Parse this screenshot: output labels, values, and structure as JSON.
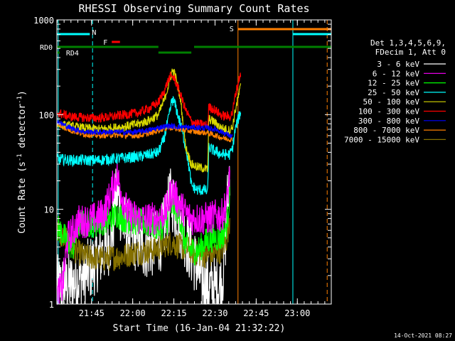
{
  "chart_data": {
    "type": "line",
    "title": "RHESSI Observing Summary Count Rates",
    "xlabel": "Start Time (16-Jan-04 21:32:22)",
    "ylabel": "Count Rate (s⁻¹ detector⁻¹)",
    "ylabel_parts": [
      "Count Rate (s",
      "-1",
      " detector",
      "-1",
      ")"
    ],
    "y_scale": "log",
    "ylim": [
      1,
      1000
    ],
    "xlim_minutes": [
      0,
      100
    ],
    "x_ticks": [
      {
        "t": 12.63,
        "label": "21:45"
      },
      {
        "t": 27.63,
        "label": "22:00"
      },
      {
        "t": 42.63,
        "label": "22:15"
      },
      {
        "t": 57.63,
        "label": "22:30"
      },
      {
        "t": 72.63,
        "label": "22:45"
      },
      {
        "t": 87.63,
        "label": "23:00"
      }
    ],
    "y_ticks": [
      {
        "v": 1,
        "label": "1"
      },
      {
        "v": 10,
        "label": "10"
      },
      {
        "v": 100,
        "label": "100"
      },
      {
        "v": 1000,
        "label": "1000"
      }
    ],
    "legend_header": [
      "Det 1,3,4,5,6,9,",
      "FDecim 1, Att 0"
    ],
    "series": [
      {
        "name": "3 - 6 keV",
        "color": "#ffffff",
        "noise": 0.35,
        "points": [
          [
            0,
            1.5
          ],
          [
            5,
            1.6
          ],
          [
            10,
            2
          ],
          [
            15,
            3
          ],
          [
            18,
            4
          ],
          [
            20,
            5
          ],
          [
            21,
            10
          ],
          [
            22,
            16
          ],
          [
            24,
            7
          ],
          [
            28,
            5
          ],
          [
            32,
            4
          ],
          [
            35,
            4.2
          ],
          [
            38,
            5
          ],
          [
            40,
            8
          ],
          [
            41,
            12
          ],
          [
            42,
            13
          ],
          [
            44,
            8
          ],
          [
            46,
            6
          ],
          [
            48,
            4
          ],
          [
            50,
            3
          ],
          [
            52,
            2
          ],
          [
            54,
            1.6
          ],
          [
            56,
            1.5
          ],
          [
            58,
            1.5
          ],
          [
            60,
            1.6
          ],
          [
            61,
            3
          ],
          [
            62,
            10
          ],
          [
            63,
            30
          ]
        ]
      },
      {
        "name": "6 - 12 keV",
        "color": "#ff00ff",
        "noise": 0.18,
        "points": [
          [
            0,
            1.3
          ],
          [
            2,
            1.5
          ],
          [
            4,
            5
          ],
          [
            6,
            6
          ],
          [
            8,
            7.5
          ],
          [
            10,
            7.5
          ],
          [
            14,
            8
          ],
          [
            17,
            9
          ],
          [
            19,
            13
          ],
          [
            21,
            20
          ],
          [
            22,
            23
          ],
          [
            24,
            13
          ],
          [
            26,
            9
          ],
          [
            30,
            8
          ],
          [
            35,
            8
          ],
          [
            38,
            8.5
          ],
          [
            40,
            10
          ],
          [
            41,
            13
          ],
          [
            42,
            16
          ],
          [
            43,
            14
          ],
          [
            45,
            11
          ],
          [
            47,
            9
          ],
          [
            49,
            8
          ],
          [
            52,
            8
          ],
          [
            55,
            8
          ],
          [
            58,
            8.5
          ],
          [
            60,
            8.5
          ],
          [
            62,
            12
          ],
          [
            63,
            25
          ]
        ]
      },
      {
        "name": "12 - 25 keV",
        "color": "#00ff00",
        "noise": 0.15,
        "points": [
          [
            0,
            6.5
          ],
          [
            2,
            5.5
          ],
          [
            4,
            4.5
          ],
          [
            6,
            4
          ],
          [
            8,
            7
          ],
          [
            10,
            7
          ],
          [
            14,
            7
          ],
          [
            17,
            7.5
          ],
          [
            20,
            8
          ],
          [
            22,
            9
          ],
          [
            24,
            8
          ],
          [
            28,
            7.5
          ],
          [
            33,
            7
          ],
          [
            37,
            6.5
          ],
          [
            40,
            7
          ],
          [
            41,
            10
          ],
          [
            43,
            11
          ],
          [
            45,
            8
          ],
          [
            46,
            5
          ],
          [
            48,
            3.8
          ],
          [
            51,
            3.6
          ],
          [
            54,
            4.5
          ],
          [
            57,
            5
          ],
          [
            60,
            5
          ],
          [
            62,
            7
          ],
          [
            63,
            15
          ]
        ]
      },
      {
        "name": "25 - 50 keV",
        "color": "#00ffff",
        "noise": 0.06,
        "points": [
          [
            0,
            34
          ],
          [
            5,
            33
          ],
          [
            10,
            33
          ],
          [
            15,
            33
          ],
          [
            20,
            34
          ],
          [
            25,
            35
          ],
          [
            30,
            36
          ],
          [
            34,
            38
          ],
          [
            37,
            40
          ],
          [
            39,
            55
          ],
          [
            41,
            100
          ],
          [
            42,
            145
          ],
          [
            43,
            130
          ],
          [
            45,
            80
          ],
          [
            47,
            45
          ],
          [
            48,
            30
          ],
          [
            49,
            18
          ],
          [
            51,
            16
          ],
          [
            54,
            16
          ],
          [
            55,
            15
          ],
          [
            55.3,
            45
          ],
          [
            57,
            42
          ],
          [
            60,
            38
          ],
          [
            63,
            38
          ],
          [
            64,
            44
          ],
          [
            65,
            70
          ],
          [
            67,
            110
          ]
        ]
      },
      {
        "name": "50 - 100 keV",
        "color": "#d7d700",
        "noise": 0.05,
        "points": [
          [
            0,
            80
          ],
          [
            5,
            75
          ],
          [
            10,
            72
          ],
          [
            15,
            70
          ],
          [
            20,
            72
          ],
          [
            25,
            75
          ],
          [
            30,
            80
          ],
          [
            34,
            88
          ],
          [
            37,
            100
          ],
          [
            39,
            140
          ],
          [
            41,
            220
          ],
          [
            42,
            290
          ],
          [
            43,
            270
          ],
          [
            45,
            150
          ],
          [
            46,
            80
          ],
          [
            47,
            45
          ],
          [
            49,
            30
          ],
          [
            51,
            28
          ],
          [
            54,
            27
          ],
          [
            55,
            26
          ],
          [
            55.3,
            90
          ],
          [
            57,
            85
          ],
          [
            60,
            72
          ],
          [
            63,
            68
          ],
          [
            64,
            74
          ],
          [
            65,
            110
          ],
          [
            67,
            200
          ]
        ]
      },
      {
        "name": "100 - 300 keV",
        "color": "#ff0000",
        "noise": 0.05,
        "points": [
          [
            0,
            105
          ],
          [
            5,
            95
          ],
          [
            10,
            93
          ],
          [
            15,
            92
          ],
          [
            20,
            95
          ],
          [
            25,
            100
          ],
          [
            30,
            105
          ],
          [
            34,
            118
          ],
          [
            37,
            135
          ],
          [
            39,
            175
          ],
          [
            41,
            245
          ],
          [
            42,
            255
          ],
          [
            43,
            235
          ],
          [
            45,
            165
          ],
          [
            47,
            110
          ],
          [
            49,
            85
          ],
          [
            51,
            80
          ],
          [
            54,
            78
          ],
          [
            55,
            77
          ],
          [
            55.3,
            120
          ],
          [
            57,
            115
          ],
          [
            60,
            98
          ],
          [
            63,
            95
          ],
          [
            64,
            105
          ],
          [
            65,
            160
          ],
          [
            67,
            280
          ]
        ]
      },
      {
        "name": "300 - 800 keV",
        "color": "#0000ff",
        "noise": 0.03,
        "points": [
          [
            0,
            85
          ],
          [
            5,
            72
          ],
          [
            10,
            66
          ],
          [
            15,
            65
          ],
          [
            20,
            66
          ],
          [
            25,
            65
          ],
          [
            30,
            66
          ],
          [
            35,
            70
          ],
          [
            38,
            74
          ],
          [
            41,
            76
          ],
          [
            45,
            74
          ],
          [
            50,
            73
          ],
          [
            55,
            72
          ],
          [
            58,
            70
          ],
          [
            60,
            66
          ],
          [
            63,
            60
          ],
          [
            64,
            58
          ]
        ]
      },
      {
        "name": "800 - 7000 keV",
        "color": "#ff7f00",
        "noise": 0.03,
        "points": [
          [
            0,
            80
          ],
          [
            5,
            68
          ],
          [
            10,
            62
          ],
          [
            15,
            60
          ],
          [
            20,
            61
          ],
          [
            25,
            60
          ],
          [
            30,
            60
          ],
          [
            35,
            65
          ],
          [
            38,
            70
          ],
          [
            41,
            73
          ],
          [
            45,
            70
          ],
          [
            50,
            66
          ],
          [
            55,
            64
          ],
          [
            58,
            60
          ],
          [
            60,
            57
          ],
          [
            63,
            55
          ],
          [
            64,
            54
          ]
        ]
      },
      {
        "name": "7000 - 15000 keV",
        "color": "#857000",
        "noise": 0.14,
        "points": [
          [
            0,
            6
          ],
          [
            2,
            5
          ],
          [
            4,
            4.5
          ],
          [
            6,
            3.8
          ],
          [
            8,
            3.5
          ],
          [
            10,
            3.2
          ],
          [
            13,
            3.1
          ],
          [
            17,
            3
          ],
          [
            20,
            3.1
          ],
          [
            24,
            3.2
          ],
          [
            28,
            3.5
          ],
          [
            32,
            3.6
          ],
          [
            36,
            3.8
          ],
          [
            39,
            4.2
          ],
          [
            42,
            4.5
          ],
          [
            45,
            4
          ],
          [
            48,
            3.8
          ],
          [
            50,
            3.5
          ],
          [
            53,
            3.3
          ],
          [
            56,
            3.3
          ],
          [
            58,
            3.5
          ],
          [
            60,
            3.7
          ],
          [
            62,
            5
          ],
          [
            63,
            8
          ]
        ]
      }
    ],
    "flag_bars": [
      {
        "label": "N",
        "color": "#00ffff",
        "y": 48,
        "dashed": false,
        "segments": [
          [
            0,
            12
          ]
        ]
      },
      {
        "label": "F",
        "color": "#ff0000",
        "y": 59,
        "dashed": false,
        "segments": [
          [
            20,
            23
          ]
        ]
      },
      {
        "label": "RD0",
        "color": "#007f00",
        "y": 66,
        "dashed": false,
        "segments": [
          [
            0,
            37
          ],
          [
            50,
            100
          ]
        ]
      },
      {
        "label": "RD4",
        "color": "#007f00",
        "y": 74,
        "dashed": false,
        "segments": [
          [
            0,
            1
          ],
          [
            37,
            49
          ]
        ]
      },
      {
        "label": "S",
        "color": "#ff7f00",
        "y": 41,
        "dashed": false,
        "segments": [
          [
            66,
            100
          ]
        ]
      },
      {
        "label": "",
        "color": "#00ffff",
        "y": 48,
        "dashed": false,
        "segments": [
          [
            86,
            100
          ]
        ]
      }
    ],
    "vertical_markers": [
      {
        "t": 0.5,
        "color": "#00ffff",
        "dashed": false
      },
      {
        "t": 13,
        "color": "#00ffff",
        "dashed": true
      },
      {
        "t": 66,
        "color": "#ff7f00",
        "dashed": false
      },
      {
        "t": 86,
        "color": "#00ffff",
        "dashed": false
      },
      {
        "t": 98.5,
        "color": "#ff7f00",
        "dashed": true
      }
    ],
    "grid": false
  },
  "footer": {
    "timestamp": "14-Oct-2021 08:27"
  }
}
